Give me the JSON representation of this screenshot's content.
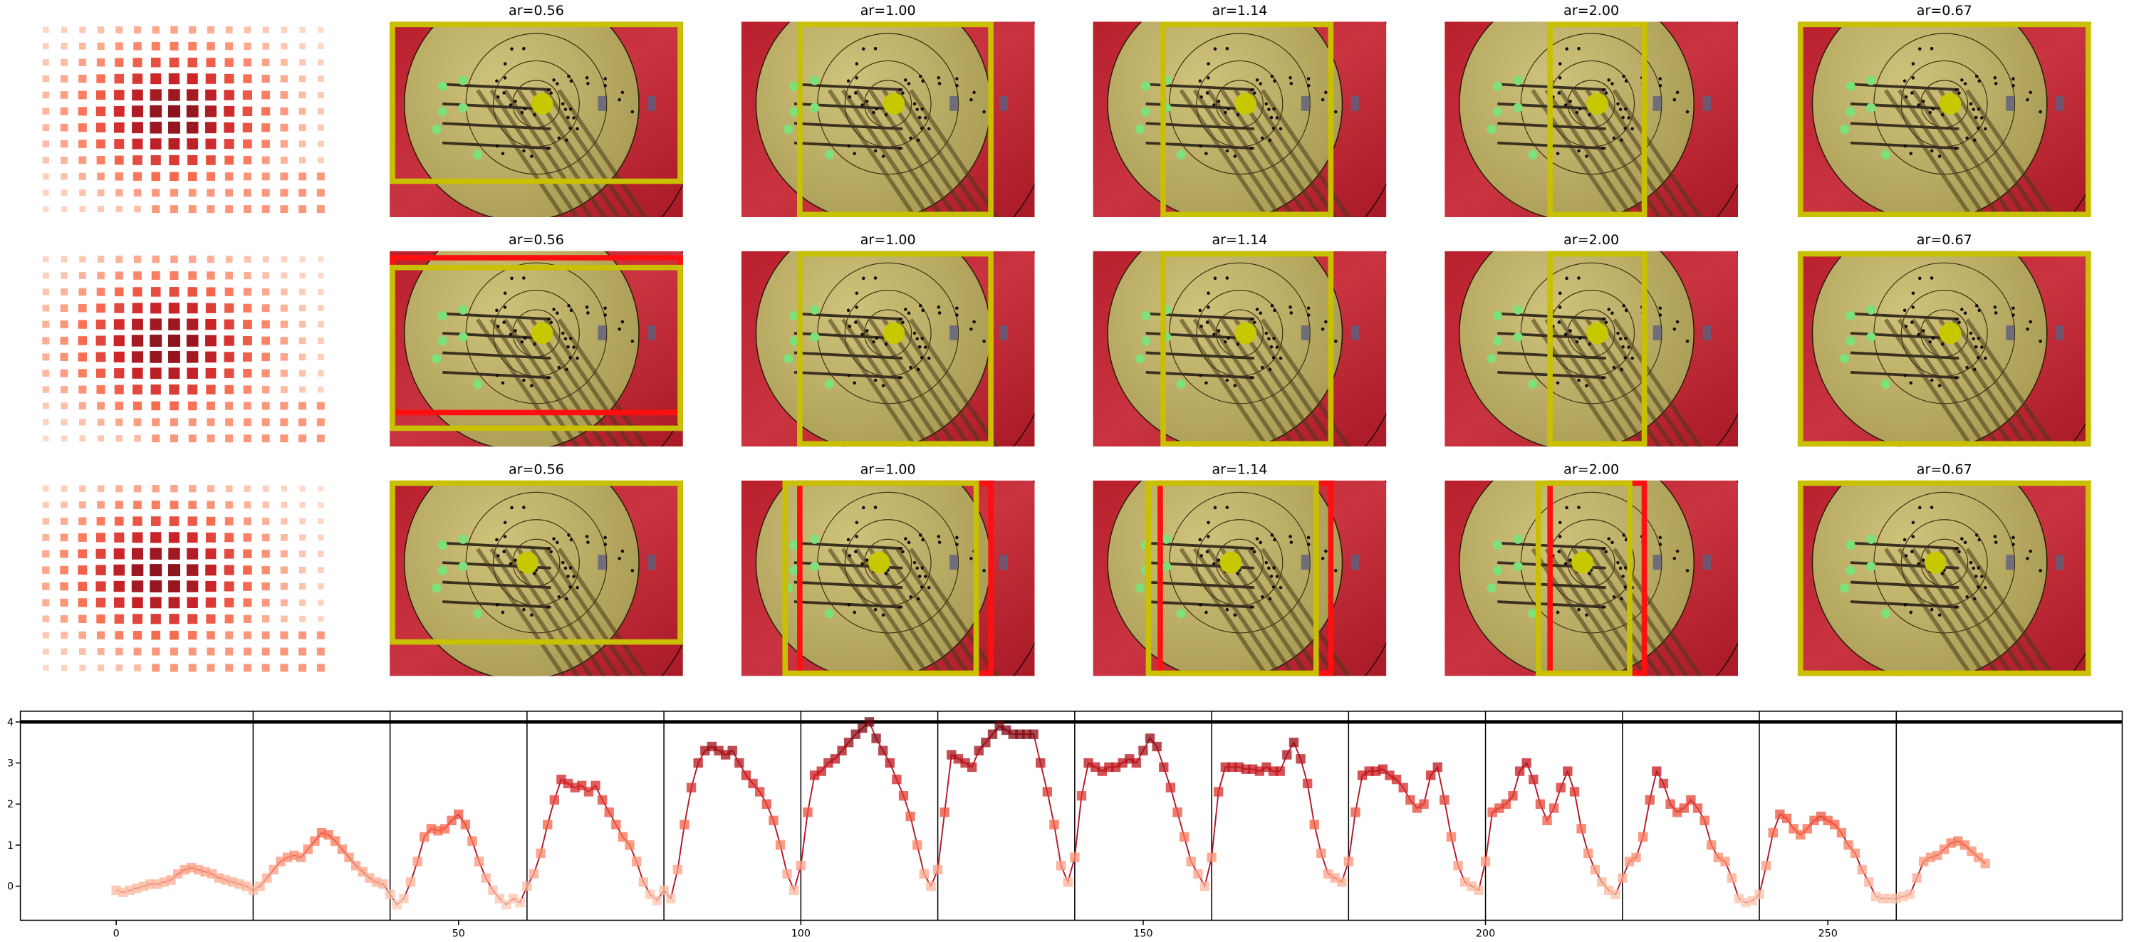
{
  "panel_titles": [
    [
      "ar=0.56",
      "ar=1.00",
      "ar=1.14",
      "ar=2.00",
      "ar=0.67"
    ],
    [
      "ar=0.56",
      "ar=1.00",
      "ar=1.14",
      "ar=2.00",
      "ar=0.67"
    ],
    [
      "ar=0.56",
      "ar=1.00",
      "ar=1.14",
      "ar=2.00",
      "ar=0.67"
    ]
  ],
  "chart_data": {
    "type": "line",
    "colormap": "Reds",
    "line_color": "#b2182b",
    "xlim": [
      -14,
      293
    ],
    "ylim": [
      -0.83,
      4.26
    ],
    "xticks": [
      0,
      50,
      100,
      150,
      200,
      250
    ],
    "yticks": [
      0,
      1,
      2,
      3,
      4
    ],
    "vlines": [
      20,
      40,
      60,
      80,
      100,
      120,
      140,
      160,
      180,
      200,
      220,
      240,
      260
    ],
    "hline": 4,
    "x": [
      0,
      1,
      2,
      3,
      4,
      5,
      6,
      7,
      8,
      9,
      10,
      11,
      12,
      13,
      14,
      15,
      16,
      17,
      18,
      19,
      20,
      21,
      22,
      23,
      24,
      25,
      26,
      27,
      28,
      29,
      30,
      31,
      32,
      33,
      34,
      35,
      36,
      37,
      38,
      39,
      40,
      41,
      42,
      43,
      44,
      45,
      46,
      47,
      48,
      49,
      50,
      51,
      52,
      53,
      54,
      55,
      56,
      57,
      58,
      59,
      60,
      61,
      62,
      63,
      64,
      65,
      66,
      67,
      68,
      69,
      70,
      71,
      72,
      73,
      74,
      75,
      76,
      77,
      78,
      79,
      80,
      81,
      82,
      83,
      84,
      85,
      86,
      87,
      88,
      89,
      90,
      91,
      92,
      93,
      94,
      95,
      96,
      97,
      98,
      99,
      100,
      101,
      102,
      103,
      104,
      105,
      106,
      107,
      108,
      109,
      110,
      111,
      112,
      113,
      114,
      115,
      116,
      117,
      118,
      119,
      120,
      121,
      122,
      123,
      124,
      125,
      126,
      127,
      128,
      129,
      130,
      131,
      132,
      133,
      134,
      135,
      136,
      137,
      138,
      139,
      140,
      141,
      142,
      143,
      144,
      145,
      146,
      147,
      148,
      149,
      150,
      151,
      152,
      153,
      154,
      155,
      156,
      157,
      158,
      159,
      160,
      161,
      162,
      163,
      164,
      165,
      166,
      167,
      168,
      169,
      170,
      171,
      172,
      173,
      174,
      175,
      176,
      177,
      178,
      179,
      180,
      181,
      182,
      183,
      184,
      185,
      186,
      187,
      188,
      189,
      190,
      191,
      192,
      193,
      194,
      195,
      196,
      197,
      198,
      199,
      200,
      201,
      202,
      203,
      204,
      205,
      206,
      207,
      208,
      209,
      210,
      211,
      212,
      213,
      214,
      215,
      216,
      217,
      218,
      219,
      220,
      221,
      222,
      223,
      224,
      225,
      226,
      227,
      228,
      229,
      230,
      231,
      232,
      233,
      234,
      235,
      236,
      237,
      238,
      239,
      240,
      241,
      242,
      243,
      244,
      245,
      246,
      247,
      248,
      249,
      250,
      251,
      252,
      253,
      254,
      255,
      256,
      257,
      258,
      259,
      260,
      261,
      262,
      263,
      264,
      265,
      266,
      267,
      268,
      269,
      270,
      271,
      272,
      273
    ],
    "values": [
      -0.1,
      -0.15,
      -0.1,
      -0.05,
      0,
      0.05,
      0.05,
      0.1,
      0.15,
      0.3,
      0.4,
      0.45,
      0.4,
      0.35,
      0.3,
      0.2,
      0.15,
      0.1,
      0.05,
      0,
      -0.1,
      0,
      0.2,
      0.4,
      0.6,
      0.7,
      0.75,
      0.7,
      0.9,
      1.1,
      1.3,
      1.25,
      1.1,
      0.9,
      0.7,
      0.5,
      0.35,
      0.2,
      0.1,
      0.05,
      -0.2,
      -0.45,
      -0.3,
      0.1,
      0.6,
      1.2,
      1.4,
      1.35,
      1.4,
      1.6,
      1.75,
      1.5,
      1.1,
      0.6,
      0.2,
      -0.1,
      -0.3,
      -0.45,
      -0.3,
      -0.4,
      0,
      0.3,
      0.8,
      1.5,
      2.1,
      2.6,
      2.5,
      2.4,
      2.45,
      2.3,
      2.45,
      2.1,
      1.8,
      1.5,
      1.2,
      1,
      0.6,
      0.1,
      -0.2,
      -0.35,
      -0.1,
      -0.3,
      0.4,
      1.5,
      2.4,
      3,
      3.3,
      3.4,
      3.3,
      3.2,
      3.3,
      3,
      2.7,
      2.5,
      2.3,
      2,
      1.6,
      1,
      0.3,
      -0.1,
      0.5,
      1.8,
      2.7,
      2.8,
      3,
      3.1,
      3.3,
      3.5,
      3.7,
      3.85,
      4,
      3.6,
      3.3,
      3,
      2.6,
      2.2,
      1.7,
      1,
      0.3,
      0,
      0.4,
      1.8,
      3.2,
      3.1,
      3,
      2.9,
      3.3,
      3.5,
      3.7,
      3.9,
      3.8,
      3.7,
      3.7,
      3.7,
      3.7,
      3,
      2.3,
      1.5,
      0.5,
      0.1,
      0.7,
      2.2,
      3,
      2.9,
      2.8,
      2.9,
      2.9,
      3,
      3.1,
      3,
      3.3,
      3.6,
      3.4,
      2.9,
      2.4,
      1.8,
      1.2,
      0.6,
      0.3,
      0,
      0.7,
      2.3,
      2.9,
      2.9,
      2.9,
      2.85,
      2.85,
      2.8,
      2.9,
      2.8,
      2.8,
      3.2,
      3.5,
      3.1,
      2.5,
      1.5,
      0.8,
      0.3,
      0.2,
      0.1,
      0.6,
      1.8,
      2.7,
      2.8,
      2.8,
      2.85,
      2.7,
      2.6,
      2.4,
      2.1,
      1.9,
      2,
      2.7,
      2.9,
      2.1,
      1.2,
      0.5,
      0.1,
      0,
      -0.1,
      0.6,
      1.8,
      1.9,
      2,
      2.2,
      2.8,
      3,
      2.6,
      2,
      1.6,
      1.9,
      2.4,
      2.8,
      2.3,
      1.4,
      0.8,
      0.4,
      0.1,
      -0.1,
      -0.2,
      0.2,
      0.6,
      0.7,
      1.2,
      2.1,
      2.8,
      2.5,
      2,
      1.8,
      1.9,
      2.1,
      1.9,
      1.6,
      1,
      0.7,
      0.6,
      0.2,
      -0.3,
      -0.4,
      -0.35,
      -0.2,
      0.5,
      1.3,
      1.75,
      1.65,
      1.4,
      1.25,
      1.4,
      1.6,
      1.7,
      1.6,
      1.5,
      1.3,
      1,
      0.8,
      0.4,
      0.1,
      -0.25,
      -0.3,
      -0.3,
      -0.3,
      -0.25,
      -0.2,
      0.2,
      0.6,
      0.7,
      0.75,
      0.9,
      1.05,
      1.1,
      1,
      0.85,
      0.7,
      0.55
    ]
  }
}
